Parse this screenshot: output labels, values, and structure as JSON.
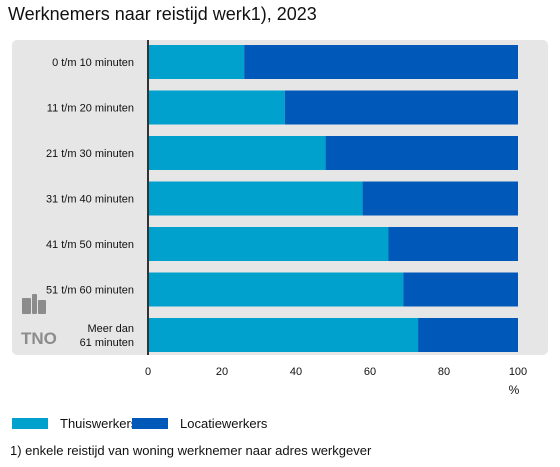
{
  "title": "Werknemers naar reistijd werk1), 2023",
  "footnote": "1) enkele reistijd van woning werknemer naar adres werkgever",
  "logo_text": "TNO",
  "colors": {
    "panel": "#e6e6e6",
    "thuiswerkers": "#00a1cd",
    "locatiewerkers": "#0058b8",
    "axis": "#333333"
  },
  "chart_data": {
    "type": "bar",
    "orientation": "horizontal",
    "stacked": true,
    "title": "Werknemers naar reistijd werk1), 2023",
    "xlabel": "%",
    "ylabel": "",
    "xlim": [
      0,
      100
    ],
    "ticks": [
      "0",
      "20",
      "40",
      "60",
      "80",
      "100"
    ],
    "categories": [
      [
        "0 t/m 10 minuten"
      ],
      [
        "11 t/m 20 minuten"
      ],
      [
        "21 t/m 30 minuten"
      ],
      [
        "31 t/m 40 minuten"
      ],
      [
        "41 t/m 50 minuten"
      ],
      [
        "51 t/m 60 minuten"
      ],
      [
        "Meer dan",
        "61 minuten"
      ]
    ],
    "series": [
      {
        "name": "Thuiswerkers",
        "color": "#00a1cd",
        "values": [
          26,
          37,
          48,
          58,
          65,
          69,
          73
        ]
      },
      {
        "name": "Locatiewerkers",
        "color": "#0058b8",
        "values": [
          74,
          63,
          52,
          42,
          35,
          31,
          27
        ]
      }
    ],
    "legend": "bottom-left",
    "grid": false
  }
}
